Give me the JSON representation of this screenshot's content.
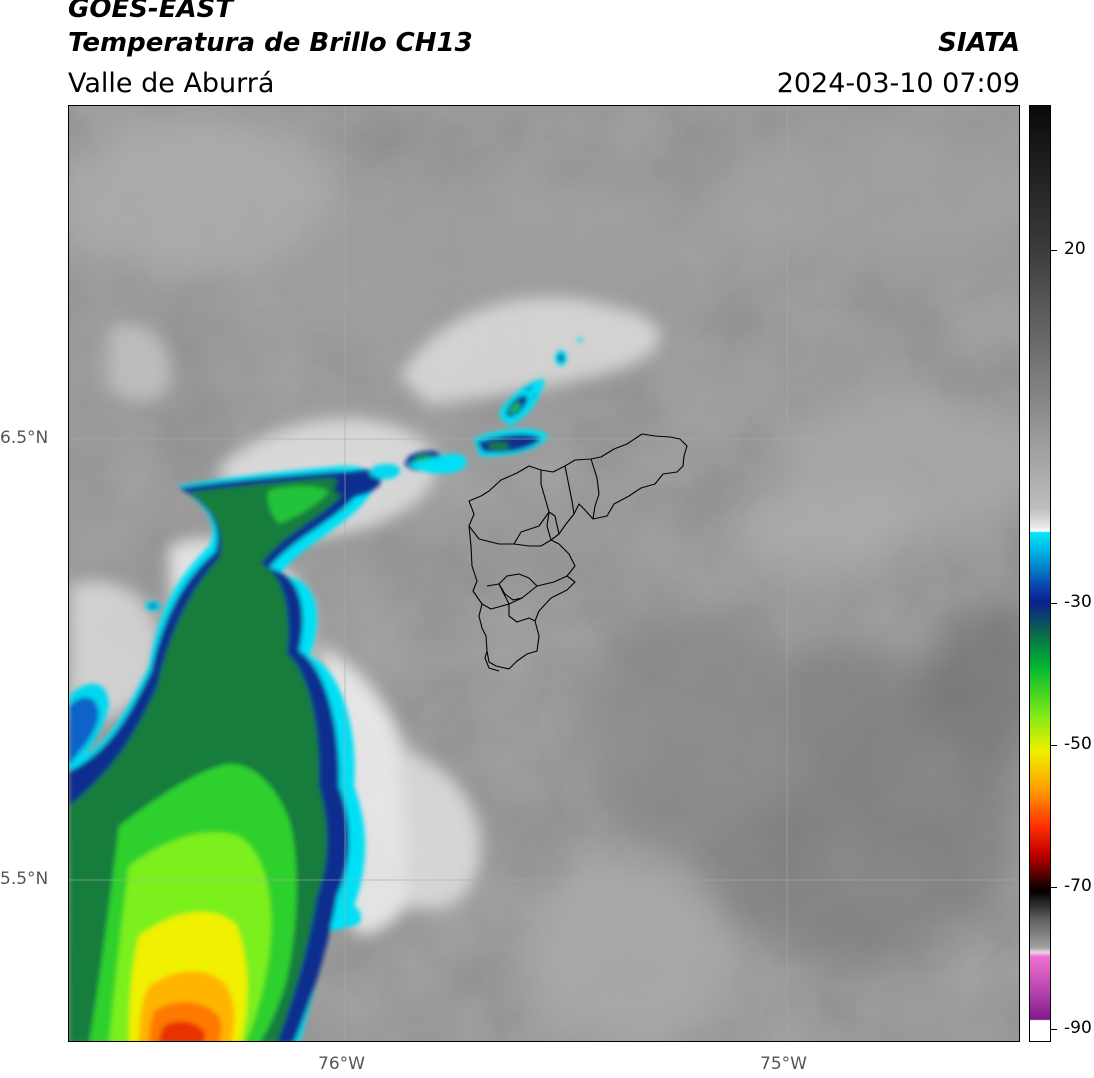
{
  "header": {
    "title_line1": "GOES-EAST",
    "title_line2": "Temperatura de Brillo CH13",
    "region": "Valle de Aburrá",
    "organization": "SIATA",
    "timestamp": "2024-03-10 07:09"
  },
  "map": {
    "lat_labels": [
      "6.5°N",
      "5.5°N"
    ],
    "lon_labels": [
      "76°W",
      "75°W"
    ],
    "gridline_color": "#a0a0a0",
    "boundary_color": "#000000"
  },
  "colorbar": {
    "tick_labels": [
      "20",
      "-30",
      "-50",
      "-70",
      "-90"
    ],
    "colors": {
      "warm_gray": "#808080",
      "cold_white": "#ffffff",
      "cyan": "#00e5ff",
      "blue": "#0a1f8c",
      "green": "#18b838",
      "yellow": "#f0f000",
      "orange": "#ff8c00",
      "red": "#e00000",
      "black": "#000000",
      "pink": "#e060c0",
      "purple": "#801a90"
    }
  }
}
